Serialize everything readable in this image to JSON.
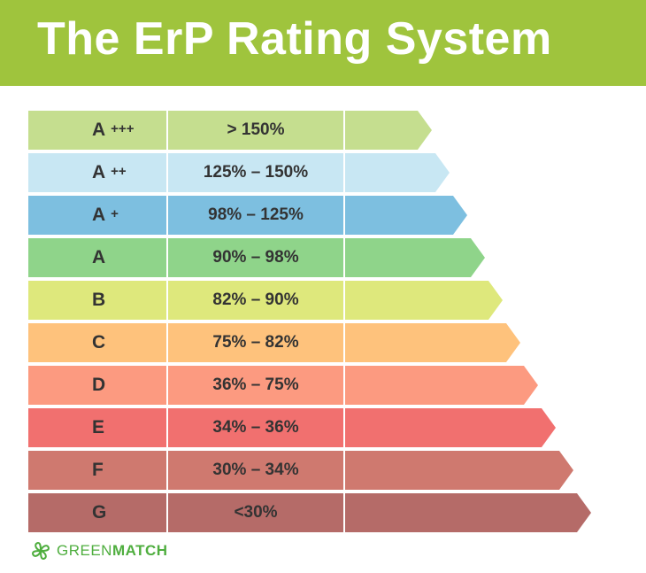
{
  "title": "The ErP Rating System",
  "header_color": "#9fc43d",
  "rows": [
    {
      "grade": "A",
      "plus": "+++",
      "range": "> 150%",
      "color": "#c5de8f"
    },
    {
      "grade": "A",
      "plus": "++",
      "range": "125% – 150%",
      "color": "#c8e7f3"
    },
    {
      "grade": "A",
      "plus": "+",
      "range": "98% – 125%",
      "color": "#7dbfe0"
    },
    {
      "grade": "A",
      "plus": "",
      "range": "90% – 98%",
      "color": "#8fd48a"
    },
    {
      "grade": "B",
      "plus": "",
      "range": "82% – 90%",
      "color": "#dee87c"
    },
    {
      "grade": "C",
      "plus": "",
      "range": "75% – 82%",
      "color": "#fec27c"
    },
    {
      "grade": "D",
      "plus": "",
      "range": "36% – 75%",
      "color": "#fc9a80"
    },
    {
      "grade": "E",
      "plus": "",
      "range": "34% – 36%",
      "color": "#f1706f"
    },
    {
      "grade": "F",
      "plus": "",
      "range": "30% – 34%",
      "color": "#cf796f"
    },
    {
      "grade": "G",
      "plus": "",
      "range": "<30%",
      "color": "#b56b68"
    }
  ],
  "logo": {
    "name_light": "GREEN",
    "name_bold": "MATCH",
    "icon": "clover-icon",
    "color": "#4fae3f"
  }
}
